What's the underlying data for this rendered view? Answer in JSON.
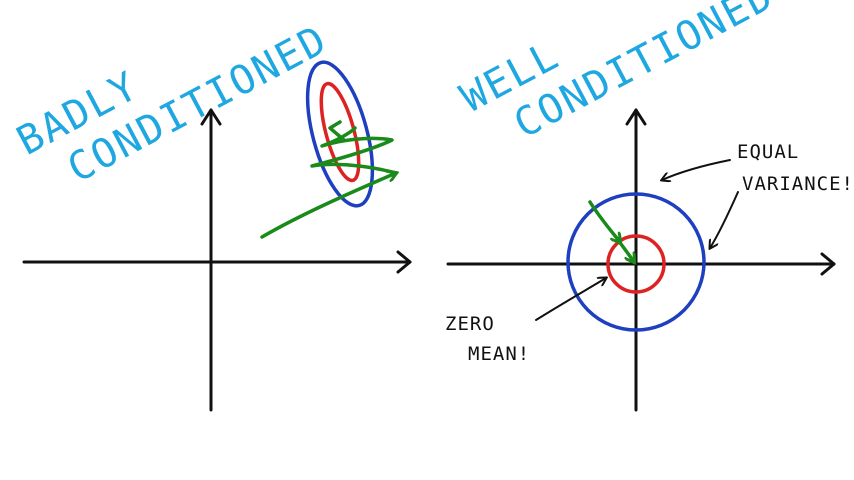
{
  "left_panel": {
    "title_line1": "BADLY",
    "title_line2": "CONDITIONED"
  },
  "right_panel": {
    "title_line1": "WELL",
    "title_line2": "CONDITIONED",
    "annotation_equal_line1": "EQUAL",
    "annotation_equal_line2": "VARIANCE!",
    "annotation_zero_line1": "ZERO",
    "annotation_zero_line2": "MEAN!"
  },
  "colors": {
    "title": "#1ea7e0",
    "outer_contour": "#1e3fbf",
    "inner_contour": "#dd2222",
    "optimization_path": "#1a8a1a",
    "axes": "#111111"
  }
}
